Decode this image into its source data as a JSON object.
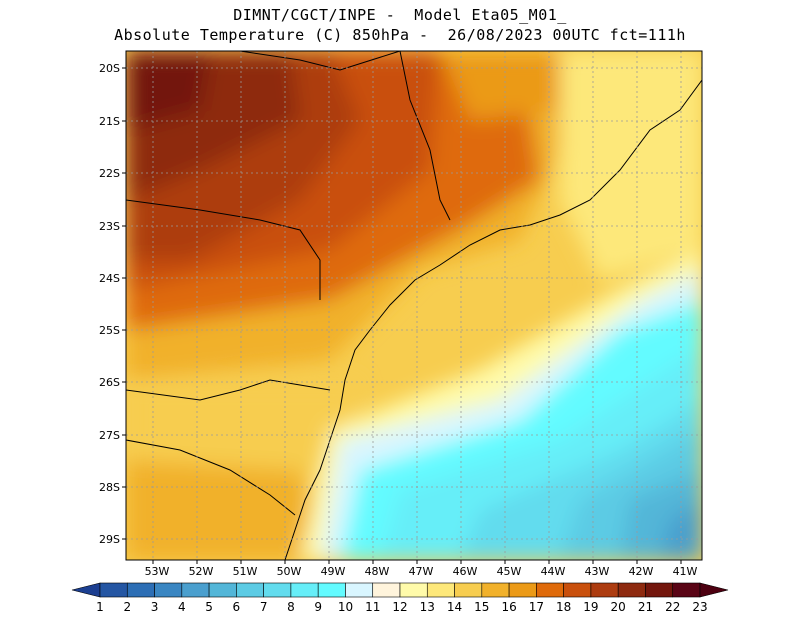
{
  "title": {
    "line1": "DIMNT/CGCT/INPE -  Model Eta05_M01_",
    "line2": "Absolute Temperature (C) 850hPa -  26/08/2023 00UTC fct=111h"
  },
  "axes": {
    "lat_labels": [
      "20S",
      "21S",
      "22S",
      "23S",
      "24S",
      "25S",
      "26S",
      "27S",
      "28S",
      "29S"
    ],
    "lon_labels": [
      "53W",
      "52W",
      "51W",
      "50W",
      "49W",
      "48W",
      "47W",
      "46W",
      "45W",
      "44W",
      "43W",
      "42W",
      "41W"
    ]
  },
  "colorbar": {
    "labels": [
      "1",
      "2",
      "3",
      "4",
      "5",
      "6",
      "7",
      "8",
      "9",
      "10",
      "11",
      "12",
      "13",
      "14",
      "15",
      "16",
      "17",
      "18",
      "19",
      "20",
      "21",
      "22",
      "23"
    ],
    "colors": [
      "#1c3f91",
      "#2456a3",
      "#2c6eb5",
      "#3a86c2",
      "#4a9fce",
      "#53b6d8",
      "#5ccbe4",
      "#62dcee",
      "#66eef8",
      "#63fbff",
      "#d9f6ff",
      "#fff4dc",
      "#fffbaa",
      "#fde87a",
      "#f7cd4f",
      "#f1b12b",
      "#eb9a17",
      "#df6a0a",
      "#c9500d",
      "#ad3c10",
      "#8e2a0f",
      "#73160c",
      "#5a0415",
      "#4d0011"
    ]
  },
  "chart_data": {
    "type": "heatmap",
    "variable": "Absolute Temperature (C) 850hPa",
    "date": "26/08/2023 00UTC",
    "forecast": "fct=111h",
    "model": "Eta05_M01_",
    "lon_range": [
      -53.7,
      -40.6
    ],
    "lat_range": [
      -29.4,
      -19.9
    ],
    "color_range": [
      1,
      23
    ]
  }
}
